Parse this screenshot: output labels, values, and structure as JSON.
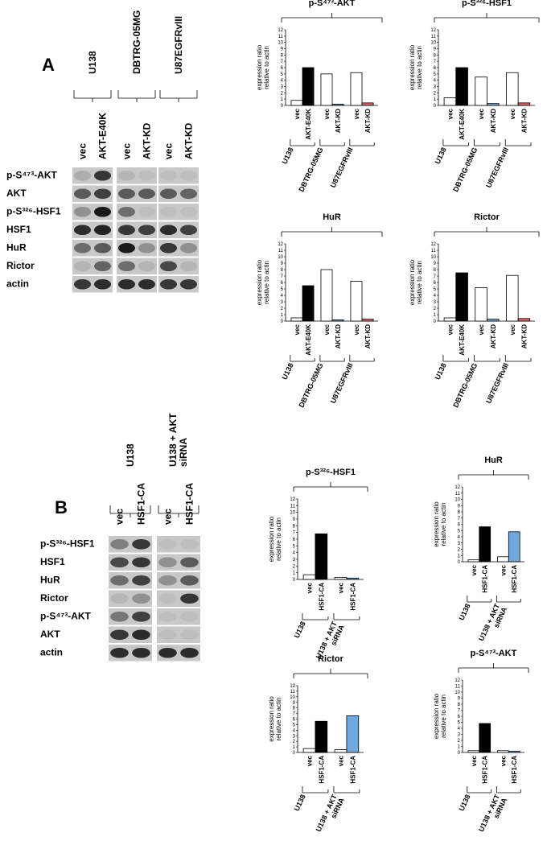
{
  "panel_labels": [
    "A",
    "B"
  ],
  "blot_a": {
    "cell_lines": [
      "U138",
      "DBTRG-05MG",
      "U87EGFRvIII"
    ],
    "lanes": [
      "vec",
      "AKT-E40K",
      "vec",
      "AKT-KD",
      "vec",
      "AKT-KD"
    ],
    "rows": [
      "p-S⁴⁷³-AKT",
      "AKT",
      "p-S³²⁶-HSF1",
      "HSF1",
      "HuR",
      "Rictor",
      "actin"
    ]
  },
  "blot_b": {
    "cell_lines": [
      [
        "U138"
      ],
      [
        "U138 + AKT",
        "siRNA"
      ]
    ],
    "lanes": [
      "vec",
      "HSF1-CA",
      "vec",
      "HSF1-CA"
    ],
    "rows": [
      "p-S³²⁶-HSF1",
      "HSF1",
      "HuR",
      "Rictor",
      "p-S⁴⁷³-AKT",
      "AKT",
      "actin"
    ]
  },
  "chart_data": [
    {
      "type": "bar",
      "title": "p-S⁴⁷³-AKT",
      "ylabel": [
        "expression ratio",
        "relative to actin"
      ],
      "categories": [
        "vec",
        "AKT-E40K",
        "vec",
        "AKT-KD",
        "vec",
        "AKT-KD"
      ],
      "groups": [
        [
          "U138"
        ],
        [
          "DBTRG-05MG"
        ],
        [
          "U87EGFRvIII"
        ]
      ],
      "values": [
        0.8,
        6,
        5,
        0.2,
        5.2,
        0.4
      ],
      "colors": [
        "#ffffff",
        "#000000",
        "#ffffff",
        "#6fa8dc",
        "#ffffff",
        "#e06666"
      ],
      "ylim": [
        0,
        12
      ],
      "yticks": [
        0,
        1,
        2,
        3,
        4,
        5,
        6,
        7,
        8,
        9,
        10,
        11,
        12
      ]
    },
    {
      "type": "bar",
      "title": "p-S³²⁶-HSF1",
      "ylabel": [
        "expression ratio",
        "relative to actin"
      ],
      "categories": [
        "vec",
        "AKT-E40K",
        "vec",
        "AKT-KD",
        "vec",
        "AKT-KD"
      ],
      "groups": [
        [
          "U138"
        ],
        [
          "DBTRG-05MG"
        ],
        [
          "U87EGFRvIII"
        ]
      ],
      "values": [
        1.2,
        6,
        4.5,
        0.3,
        5.2,
        0.4
      ],
      "colors": [
        "#ffffff",
        "#000000",
        "#ffffff",
        "#6fa8dc",
        "#ffffff",
        "#e06666"
      ],
      "ylim": [
        0,
        12
      ],
      "yticks": [
        0,
        1,
        2,
        3,
        4,
        5,
        6,
        7,
        8,
        9,
        10,
        11,
        12
      ]
    },
    {
      "type": "bar",
      "title": "HuR",
      "ylabel": [
        "expression ratio",
        "relative to actin"
      ],
      "categories": [
        "vec",
        "AKT-E40K",
        "vec",
        "AKT-KD",
        "vec",
        "AKT-KD"
      ],
      "groups": [
        [
          "U138"
        ],
        [
          "DBTRG-05MG"
        ],
        [
          "U87EGFRvIII"
        ]
      ],
      "values": [
        0.5,
        5.5,
        8,
        0.2,
        6.2,
        0.3
      ],
      "colors": [
        "#ffffff",
        "#000000",
        "#ffffff",
        "#6fa8dc",
        "#ffffff",
        "#e06666"
      ],
      "ylim": [
        0,
        12
      ],
      "yticks": [
        0,
        1,
        2,
        3,
        4,
        5,
        6,
        7,
        8,
        9,
        10,
        11,
        12
      ]
    },
    {
      "type": "bar",
      "title": "Rictor",
      "ylabel": [
        "expression ratio",
        "relative to actin"
      ],
      "categories": [
        "vec",
        "AKT-E40K",
        "vec",
        "AKT-KD",
        "vec",
        "AKT-KD"
      ],
      "groups": [
        [
          "U138"
        ],
        [
          "DBTRG-05MG"
        ],
        [
          "U87EGFRvIII"
        ]
      ],
      "values": [
        0.5,
        7.5,
        5.2,
        0.3,
        7.1,
        0.4
      ],
      "colors": [
        "#ffffff",
        "#000000",
        "#ffffff",
        "#6fa8dc",
        "#ffffff",
        "#e06666"
      ],
      "ylim": [
        0,
        12
      ],
      "yticks": [
        0,
        1,
        2,
        3,
        4,
        5,
        6,
        7,
        8,
        9,
        10,
        11,
        12
      ]
    },
    {
      "type": "bar",
      "title": "p-S³²⁶-HSF1",
      "ylabel": [
        "expression ratio",
        "relative to actin"
      ],
      "categories": [
        "vec",
        "HSF1-CA",
        "vec",
        "HSF1-CA"
      ],
      "groups": [
        [
          "U138"
        ],
        [
          "U138 + AKT",
          "siRNA"
        ]
      ],
      "values": [
        0.7,
        6.8,
        0.3,
        0.2
      ],
      "colors": [
        "#ffffff",
        "#000000",
        "#ffffff",
        "#6fa8dc"
      ],
      "ylim": [
        0,
        12
      ],
      "yticks": [
        0,
        1,
        2,
        3,
        4,
        5,
        6,
        7,
        8,
        9,
        10,
        11,
        12
      ]
    },
    {
      "type": "bar",
      "title": "HuR",
      "ylabel": [
        "expression ratio",
        "relative to actin"
      ],
      "categories": [
        "vec",
        "HSF1-CA",
        "vec",
        "HSF1-CA"
      ],
      "groups": [
        [
          "U138"
        ],
        [
          "U138 + AKT",
          "siRNA"
        ]
      ],
      "values": [
        0.3,
        5.6,
        0.8,
        4.8
      ],
      "colors": [
        "#ffffff",
        "#000000",
        "#ffffff",
        "#6fa8dc"
      ],
      "ylim": [
        0,
        12
      ],
      "yticks": [
        0,
        1,
        2,
        3,
        4,
        5,
        6,
        7,
        8,
        9,
        10,
        11,
        12
      ]
    },
    {
      "type": "bar",
      "title": "Rictor",
      "ylabel": [
        "expression ratio",
        "relative to actin"
      ],
      "categories": [
        "vec",
        "HSF1-CA",
        "vec",
        "HSF1-CA"
      ],
      "groups": [
        [
          "U138"
        ],
        [
          "U138 + AKT",
          "siRNA"
        ]
      ],
      "values": [
        0.7,
        5.6,
        0.5,
        6.6
      ],
      "colors": [
        "#ffffff",
        "#000000",
        "#ffffff",
        "#6fa8dc"
      ],
      "ylim": [
        0,
        12
      ],
      "yticks": [
        0,
        1,
        2,
        3,
        4,
        5,
        6,
        7,
        8,
        9,
        10,
        11,
        12
      ]
    },
    {
      "type": "bar",
      "title": "p-S⁴⁷³-AKT",
      "ylabel": [
        "expression ratio",
        "relative to actin"
      ],
      "categories": [
        "vec",
        "HSF1-CA",
        "vec",
        "HSF1-CA"
      ],
      "groups": [
        [
          "U138"
        ],
        [
          "U138 + AKT",
          "siRNA"
        ]
      ],
      "values": [
        0.3,
        4.8,
        0.3,
        0.2
      ],
      "colors": [
        "#ffffff",
        "#000000",
        "#ffffff",
        "#6fa8dc"
      ],
      "ylim": [
        0,
        12
      ],
      "yticks": [
        0,
        1,
        2,
        3,
        4,
        5,
        6,
        7,
        8,
        9,
        10,
        11,
        12
      ]
    }
  ]
}
